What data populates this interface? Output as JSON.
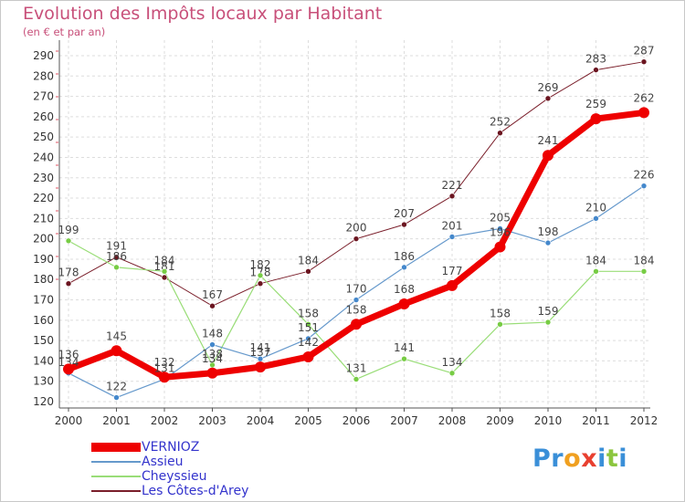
{
  "header": {
    "title": "Evolution des Impôts locaux par Habitant",
    "subtitle": "(en € et par an)"
  },
  "logo": {
    "text": "Proxiti",
    "letters": [
      {
        "ch": "P",
        "color": "#3a8fd8"
      },
      {
        "ch": "r",
        "color": "#3a8fd8"
      },
      {
        "ch": "o",
        "color": "#f0a020"
      },
      {
        "ch": "x",
        "color": "#e84030"
      },
      {
        "ch": "i",
        "color": "#3a8fd8"
      },
      {
        "ch": "t",
        "color": "#8cc63f"
      },
      {
        "ch": "i",
        "color": "#3a8fd8"
      }
    ]
  },
  "chart_data": {
    "type": "line",
    "title": "Evolution des Impôts locaux par Habitant",
    "subtitle": "(en € et par an)",
    "x": [
      "2000",
      "2001",
      "2002",
      "2003",
      "2004",
      "2005",
      "2006",
      "2007",
      "2008",
      "2009",
      "2010",
      "2011",
      "2012"
    ],
    "ylim": [
      120,
      290
    ],
    "yticks": [
      120,
      130,
      140,
      150,
      160,
      170,
      180,
      190,
      200,
      210,
      220,
      230,
      240,
      250,
      260,
      270,
      280,
      290
    ],
    "grid": true,
    "legend_position": "bottom-left",
    "series": [
      {
        "name": "Les Côtes-d'Arey",
        "color": "#7a1e2a",
        "dot": "#6b1520",
        "width": 1,
        "values": [
          178,
          191,
          181,
          167,
          178,
          184,
          200,
          207,
          221,
          252,
          269,
          283,
          287
        ]
      },
      {
        "name": "Cheyssieu",
        "color": "#99dd77",
        "dot": "#77cc44",
        "width": 1.2,
        "values": [
          199,
          186,
          184,
          138,
          182,
          158,
          131,
          141,
          134,
          158,
          159,
          184,
          184
        ]
      },
      {
        "name": "Assieu",
        "color": "#6699cc",
        "dot": "#4488cc",
        "width": 1.2,
        "values": [
          134,
          122,
          131,
          148,
          141,
          151,
          170,
          186,
          201,
          205,
          198,
          210,
          226
        ]
      },
      {
        "name": "VERNIOZ",
        "color": "#ee0000",
        "dot": "#ee0000",
        "width": 7,
        "values": [
          136,
          145,
          132,
          134,
          137,
          142,
          158,
          168,
          177,
          196,
          241,
          259,
          262
        ]
      }
    ],
    "legend_order": [
      "VERNIOZ",
      "Assieu",
      "Cheyssieu",
      "Les Côtes-d'Arey"
    ]
  }
}
